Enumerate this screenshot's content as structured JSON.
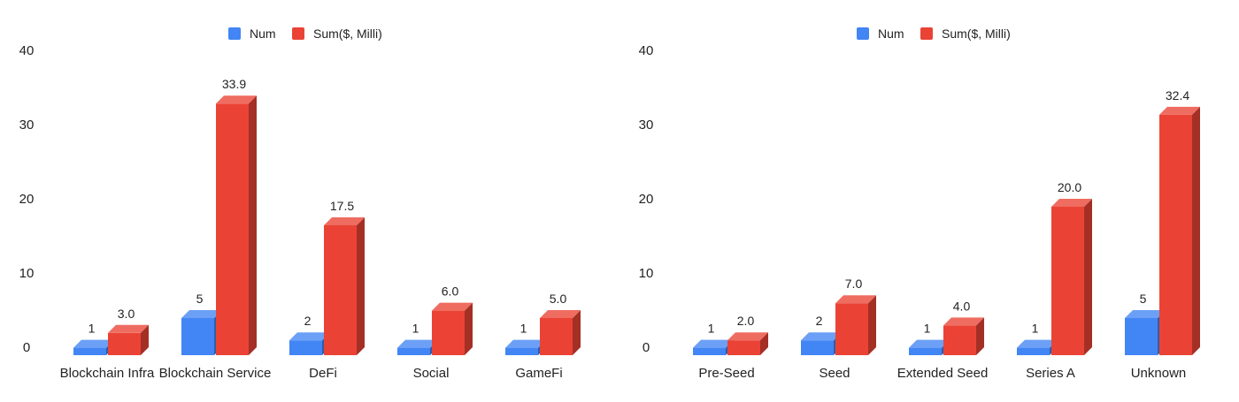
{
  "chart_data": [
    {
      "type": "bar",
      "categories": [
        "Blockchain Infra",
        "Blockchain Service",
        "DeFi",
        "Social",
        "GameFi"
      ],
      "series": [
        {
          "name": "Num",
          "values": [
            1,
            5,
            2,
            1,
            1
          ],
          "labels": [
            "1",
            "5",
            "2",
            "1",
            "1"
          ],
          "color": "#4285f4"
        },
        {
          "name": "Sum($, Milli)",
          "values": [
            3.0,
            33.9,
            17.5,
            6.0,
            5.0
          ],
          "labels": [
            "3.0",
            "33.9",
            "17.5",
            "6.0",
            "5.0"
          ],
          "color": "#ea4335"
        }
      ],
      "yticks": [
        "0",
        "10",
        "20",
        "30",
        "40"
      ],
      "ylim": [
        0,
        40
      ],
      "legend": "top",
      "grid": false,
      "style": "3d"
    },
    {
      "type": "bar",
      "categories": [
        "Pre-Seed",
        "Seed",
        "Extended Seed",
        "Series A",
        "Unknown"
      ],
      "series": [
        {
          "name": "Num",
          "values": [
            1,
            2,
            1,
            1,
            5
          ],
          "labels": [
            "1",
            "2",
            "1",
            "1",
            "5"
          ],
          "color": "#4285f4"
        },
        {
          "name": "Sum($, Milli)",
          "values": [
            2.0,
            7.0,
            4.0,
            20.0,
            32.4
          ],
          "labels": [
            "2.0",
            "7.0",
            "4.0",
            "20.0",
            "32.4"
          ],
          "color": "#ea4335"
        }
      ],
      "yticks": [
        "0",
        "10",
        "20",
        "30",
        "40"
      ],
      "ylim": [
        0,
        40
      ],
      "legend": "top",
      "grid": false,
      "style": "3d"
    }
  ]
}
